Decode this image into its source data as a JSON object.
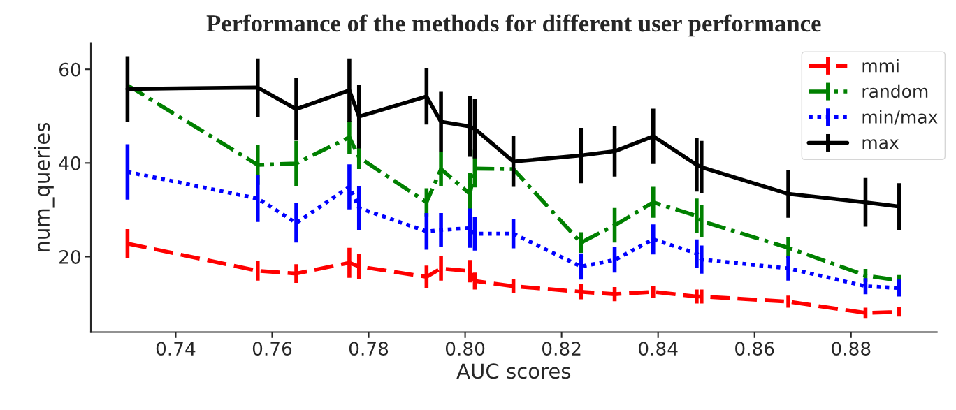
{
  "chart_data": {
    "type": "line",
    "title": "Performance of the methods for different user performance",
    "xlabel": "AUC scores",
    "ylabel": "num_queries",
    "x": [
      0.73,
      0.757,
      0.765,
      0.776,
      0.778,
      0.792,
      0.795,
      0.801,
      0.802,
      0.81,
      0.824,
      0.831,
      0.839,
      0.848,
      0.849,
      0.867,
      0.883,
      0.89
    ],
    "series": [
      {
        "name": "mmi",
        "color": "#ff0000",
        "line_style": "dashed",
        "values": [
          22.8,
          17.0,
          16.4,
          18.7,
          17.9,
          15.7,
          17.5,
          16.9,
          14.8,
          13.7,
          12.5,
          12.0,
          12.5,
          11.5,
          11.5,
          10.4,
          8.0,
          8.2
        ],
        "errors": [
          3.1,
          2.1,
          2.0,
          3.2,
          2.7,
          2.4,
          2.6,
          2.4,
          1.8,
          1.5,
          1.6,
          1.5,
          1.3,
          1.5,
          1.5,
          1.3,
          1.1,
          1.0
        ]
      },
      {
        "name": "random",
        "color": "#008000",
        "line_style": "dashdot",
        "values": [
          56.6,
          39.6,
          39.9,
          45.5,
          41.2,
          31.6,
          38.7,
          33.4,
          38.8,
          38.7,
          23.0,
          26.7,
          31.6,
          28.7,
          27.6,
          21.9,
          16.0,
          14.9
        ],
        "errors": [
          null,
          4.3,
          4.8,
          3.5,
          2.5,
          3.0,
          3.6,
          4.5,
          4.0,
          null,
          2.2,
          3.7,
          3.3,
          3.7,
          3.5,
          2.2,
          1.4,
          1.2
        ]
      },
      {
        "name": "min/max",
        "color": "#0000ff",
        "line_style": "dotted",
        "values": [
          38.1,
          32.4,
          27.2,
          34.9,
          30.4,
          25.4,
          25.7,
          26.1,
          24.9,
          24.9,
          17.9,
          19.3,
          23.7,
          20.7,
          19.4,
          17.5,
          13.7,
          13.3
        ],
        "errors": [
          5.9,
          5.0,
          4.2,
          4.8,
          4.7,
          3.9,
          3.6,
          4.2,
          3.6,
          3.1,
          2.8,
          2.7,
          3.2,
          3.0,
          3.0,
          2.6,
          1.7,
          1.8
        ]
      },
      {
        "name": "max",
        "color": "#000000",
        "line_style": "solid",
        "values": [
          55.8,
          56.1,
          51.5,
          55.5,
          49.9,
          54.2,
          48.8,
          47.8,
          47.3,
          40.3,
          41.6,
          42.5,
          45.7,
          39.6,
          39.1,
          33.4,
          31.6,
          30.7
        ],
        "errors": [
          7.0,
          6.2,
          6.7,
          6.8,
          6.8,
          6.0,
          6.4,
          6.5,
          6.3,
          5.4,
          5.9,
          5.4,
          5.9,
          5.7,
          5.6,
          5.1,
          5.2,
          5.0
        ]
      }
    ],
    "xlim": [
      0.7224,
      0.8978
    ],
    "xticks": [
      0.74,
      0.76,
      0.78,
      {
        "value": 0.8,
        "label": "0.80"
      },
      0.82,
      0.84,
      0.86,
      0.88
    ],
    "ylim": [
      3.9,
      65.6
    ],
    "yticks": [
      20,
      40,
      60
    ],
    "legend": "top right",
    "grid": false,
    "marker": "none"
  }
}
